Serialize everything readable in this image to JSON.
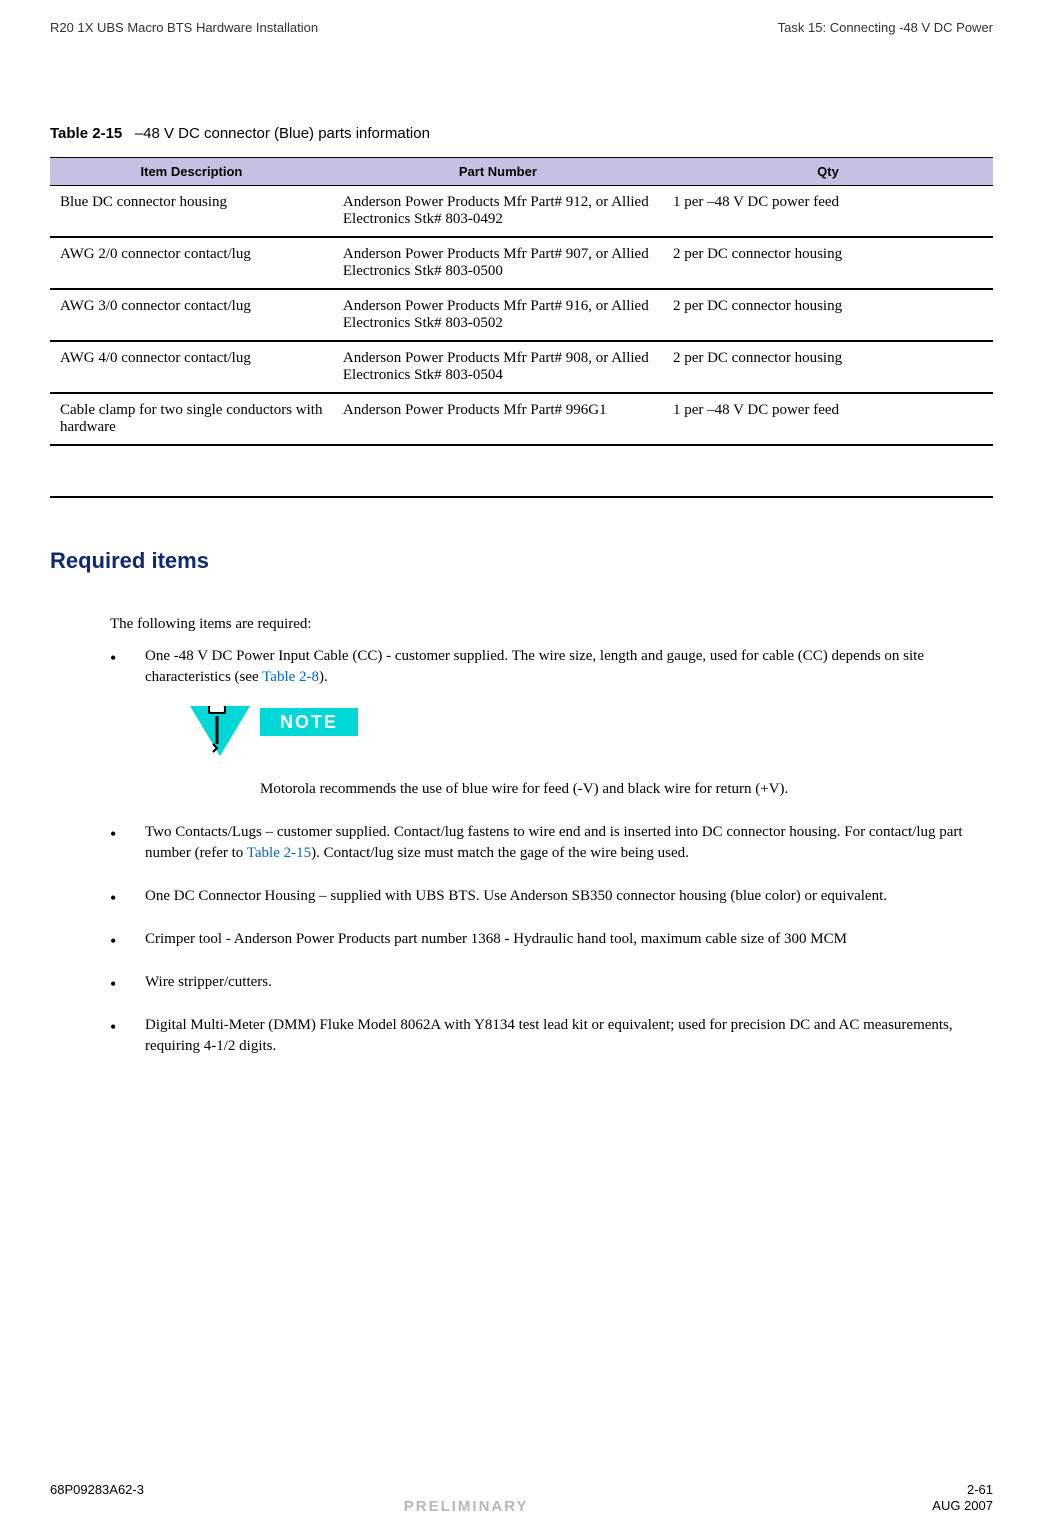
{
  "header": {
    "left": "R20 1X UBS Macro BTS Hardware Installation",
    "right": "Task 15: Connecting -48 V DC Power"
  },
  "table": {
    "caption_label": "Table 2-15",
    "caption_text": "–48 V DC connector (Blue) parts information",
    "header_bg": "#c5c1e3",
    "columns": [
      "Item Description",
      "Part Number",
      "Qty"
    ],
    "rows": [
      [
        "Blue DC connector housing",
        "Anderson Power Products Mfr Part# 912, or Allied Electronics Stk# 803-0492",
        "1 per –48 V DC power feed"
      ],
      [
        "AWG 2/0 connector contact/lug",
        "Anderson Power Products Mfr Part# 907, or Allied Electronics Stk# 803-0500",
        "2 per DC connector housing"
      ],
      [
        "AWG 3/0 connector contact/lug",
        "Anderson Power Products Mfr Part# 916, or Allied Electronics Stk# 803-0502",
        "2 per DC connector housing"
      ],
      [
        "AWG 4/0 connector contact/lug",
        "Anderson Power Products Mfr Part# 908, or Allied Electronics Stk# 803-0504",
        "2 per DC connector housing"
      ],
      [
        "Cable clamp for two single conductors with hardware",
        "Anderson Power Products Mfr Part# 996G1",
        "1 per –48 V DC power feed"
      ]
    ]
  },
  "section": {
    "heading": "Required items",
    "heading_color": "#0f2874",
    "intro": "The following items are required:",
    "link_color": "#0066cc",
    "items": [
      {
        "pre": "One -48 V DC Power Input Cable (CC) - customer supplied. The wire size, length and gauge, used for cable (CC) depends on site characteristics (see ",
        "link": "Table 2-8",
        "post": ").",
        "has_note": true
      },
      {
        "pre": "Two Contacts/Lugs – customer supplied. Contact/lug fastens to wire end and is inserted into DC connector housing. For contact/lug part number (refer to ",
        "link": "Table 2-15",
        "post": "). Contact/lug size must match the gage of the wire being used."
      },
      {
        "pre": "One DC Connector Housing – supplied with UBS BTS. Use Anderson SB350 connector housing (blue color) or equivalent."
      },
      {
        "pre": "Crimper tool - Anderson Power Products part number 1368 - Hydraulic hand tool, maximum cable size of 300 MCM"
      },
      {
        "pre": "Wire stripper/cutters."
      },
      {
        "pre": "Digital Multi-Meter (DMM) Fluke Model 8062A with Y8134 test lead kit or equivalent; used for precision DC and AC measurements, requiring 4-1/2 digits."
      }
    ],
    "note": {
      "badge": "NOTE",
      "badge_bg": "#00d8d8",
      "icon_color": "#00d8d8",
      "text": "Motorola recommends the use of blue wire for feed (-V) and black wire for return (+V)."
    }
  },
  "footer": {
    "left": "68P09283A62-3",
    "right_page": "2-61",
    "center": "PRELIMINARY",
    "center_color": "#b8b8b8",
    "right_date": "AUG 2007"
  }
}
